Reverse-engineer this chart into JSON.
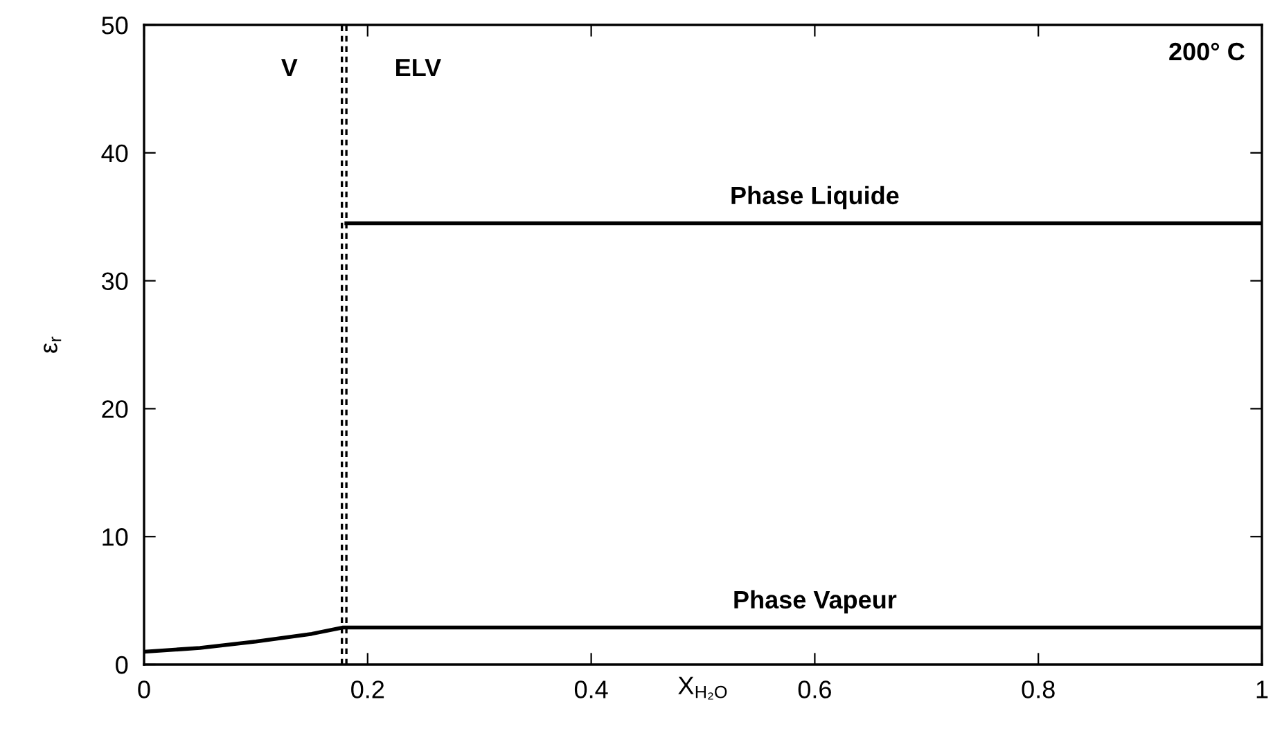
{
  "chart_data": {
    "type": "line",
    "xlabel": "X$_{H₂O}$",
    "ylabel": "ε$_{r}$",
    "xlim": [
      0,
      1
    ],
    "ylim": [
      0,
      50
    ],
    "xticks": [
      0,
      0.2,
      0.4,
      0.6,
      0.8,
      1
    ],
    "yticks": [
      0,
      10,
      20,
      30,
      40,
      50
    ],
    "series": [
      {
        "color": "#000000",
        "x": [
          0,
          0.05,
          0.1,
          0.15,
          0.178,
          1
        ],
        "values": [
          1.0,
          1.3,
          1.8,
          2.4,
          2.9,
          2.9
        ]
      },
      {
        "color": "#000000",
        "x": [
          0.181,
          1
        ],
        "values": [
          34.5,
          34.5
        ]
      }
    ],
    "ref_lines": [
      {
        "axis": "x",
        "value": 0.177,
        "color": "#000000",
        "line_style": "dashed"
      },
      {
        "axis": "x",
        "value": 0.181,
        "color": "#000000",
        "line_style": "dashed"
      }
    ],
    "annotations": [
      "V",
      "ELV",
      "200° C",
      "Phase Liquide",
      "Phase Vapeur"
    ],
    "grid": false,
    "legend": false,
    "marker": "none",
    "line_style": "solid"
  }
}
